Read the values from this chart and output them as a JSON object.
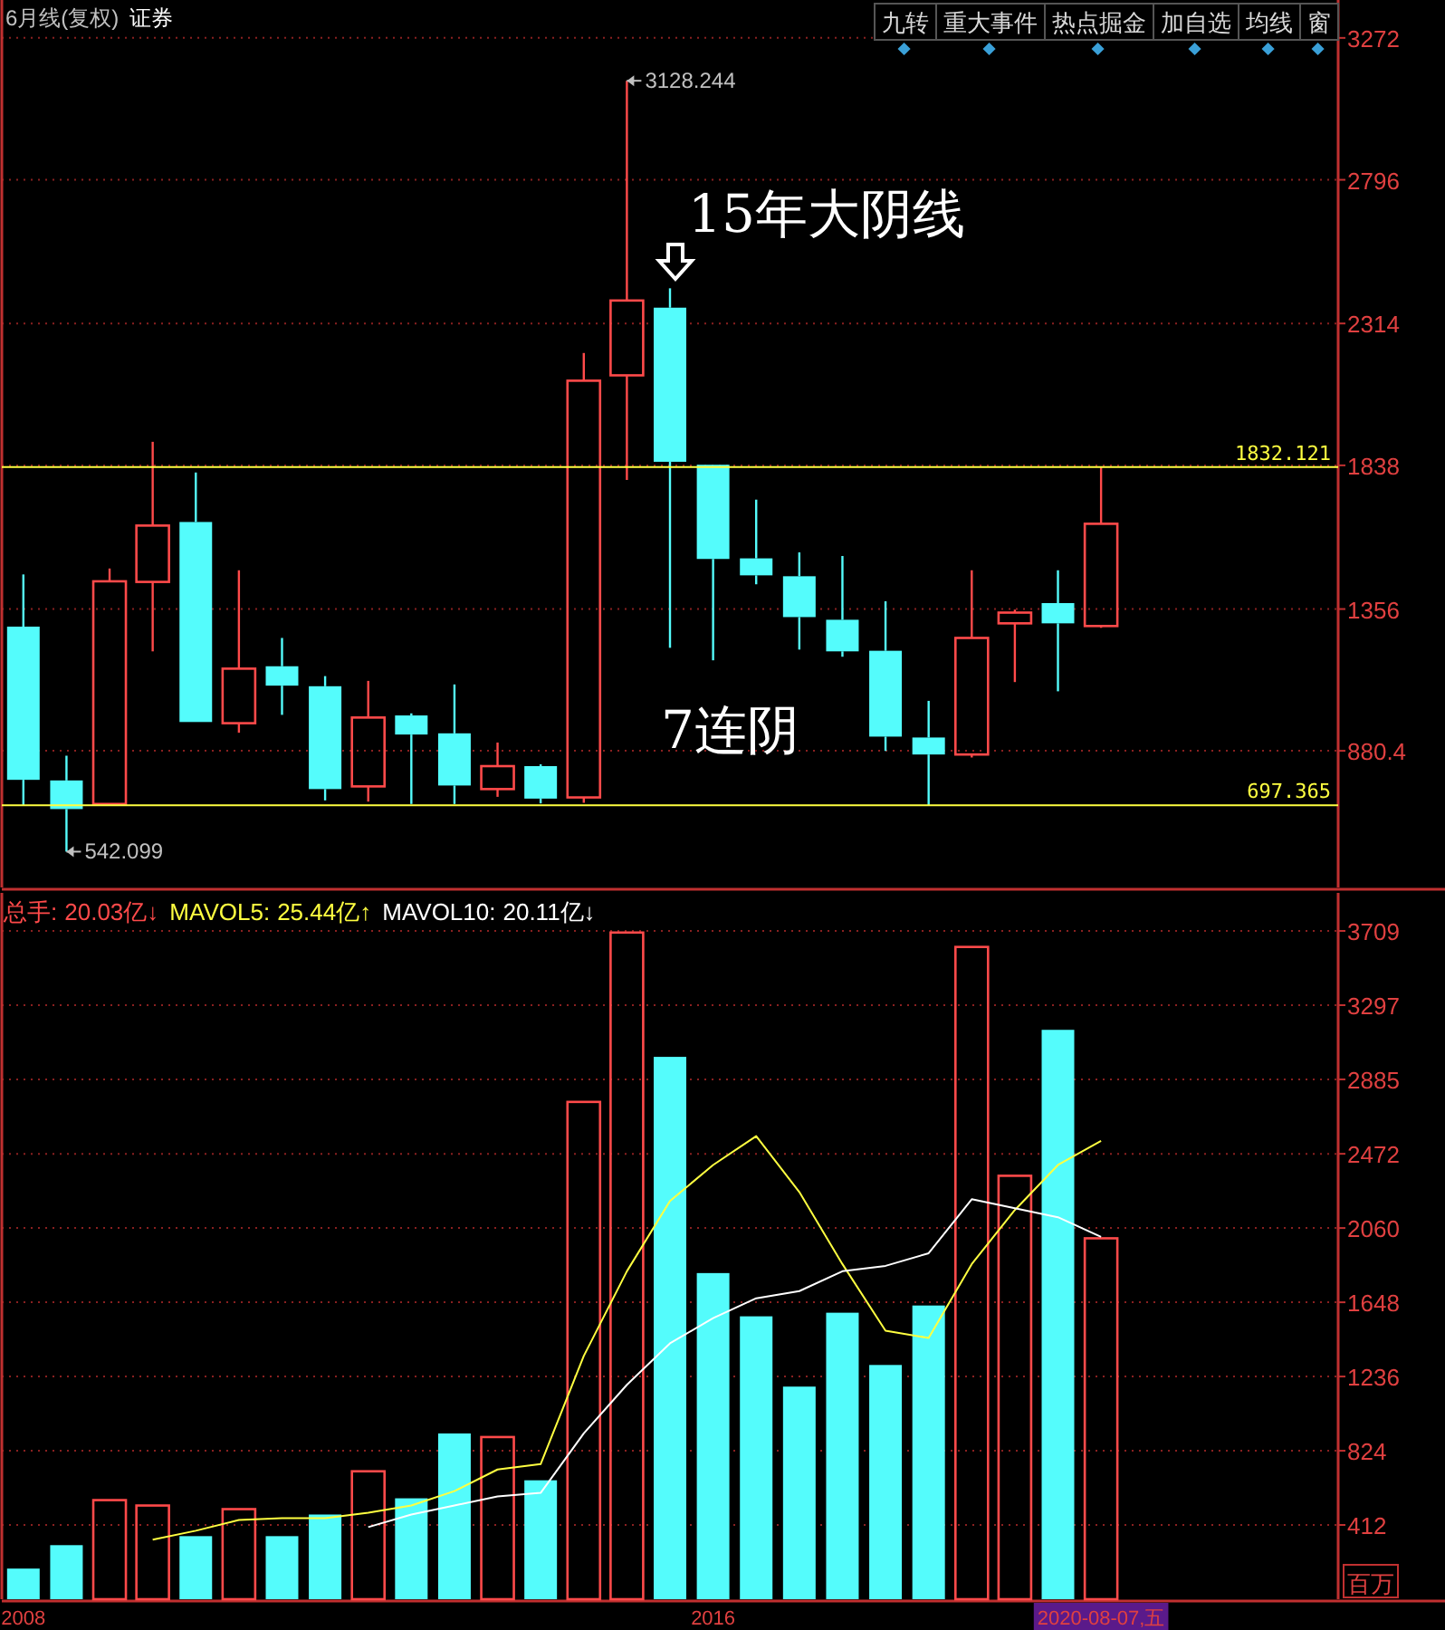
{
  "chart_data": [
    {
      "type": "candlestick",
      "title": "6月线(复权)",
      "subtitle": "证券",
      "categories": [
        null,
        null,
        null,
        null,
        null,
        null,
        null,
        null,
        null,
        null,
        null,
        null,
        null,
        null,
        null,
        null,
        null,
        null,
        null,
        null,
        null,
        null,
        null,
        null,
        null,
        null,
        null,
        null,
        null,
        null,
        null
      ],
      "ohlc": [
        [
          1297,
          1472,
          696,
          783
        ],
        [
          781,
          864,
          542.099,
          685
        ],
        [
          702,
          1492,
          697,
          1449
        ],
        [
          1447,
          1917,
          1214,
          1636
        ],
        [
          1648,
          1814,
          977,
          977
        ],
        [
          973,
          1486,
          941,
          1156
        ],
        [
          1164,
          1259,
          1001,
          1099
        ],
        [
          1097,
          1131,
          714,
          752
        ],
        [
          761,
          1115,
          710,
          992
        ],
        [
          999,
          1006,
          702,
          935
        ],
        [
          939,
          1103,
          702,
          764
        ],
        [
          752,
          908,
          726,
          829
        ],
        [
          829,
          835,
          704,
          720
        ],
        [
          724,
          2215,
          706,
          2122
        ],
        [
          2140,
          3128.244,
          1789,
          2391
        ],
        [
          2367,
          2432,
          1226,
          1850
        ],
        [
          1840,
          1840,
          1184,
          1524
        ],
        [
          1526,
          1723,
          1439,
          1469
        ],
        [
          1466,
          1546,
          1220,
          1329
        ],
        [
          1320,
          1534,
          1196,
          1214
        ],
        [
          1216,
          1382,
          880,
          928
        ],
        [
          925,
          1048,
          697.365,
          868
        ],
        [
          868,
          1486,
          858,
          1259
        ],
        [
          1308,
          1354,
          1111,
          1344
        ],
        [
          1376,
          1486,
          1080,
          1308
        ],
        [
          1299,
          1832.121,
          1293,
          1642
        ],
        null,
        null,
        null,
        null,
        null
      ],
      "colors": [
        "#54fcfc",
        "#54fcfc",
        "#ff4a4a",
        "#ff4a4a",
        "#54fcfc",
        "#ff4a4a",
        "#54fcfc",
        "#54fcfc",
        "#ff4a4a",
        "#54fcfc",
        "#54fcfc",
        "#ff4a4a",
        "#54fcfc",
        "#ff4a4a",
        "#ff4a4a",
        "#54fcfc",
        "#54fcfc",
        "#54fcfc",
        "#54fcfc",
        "#54fcfc",
        "#54fcfc",
        "#54fcfc",
        "#ff4a4a",
        "#ff4a4a",
        "#54fcfc",
        "#ff4a4a",
        null,
        null,
        null,
        null,
        null
      ],
      "ylim": [
        422,
        3387
      ],
      "yticks": [
        880.4,
        1356,
        1838,
        2314,
        2796,
        3272
      ],
      "grid": "y",
      "tick_labels": "y",
      "ref_lines": [
        {
          "axis": "y",
          "value": 1832.121,
          "label": "1832.121",
          "color": "#ffff40"
        },
        {
          "axis": "y",
          "value": 697.365,
          "label": "697.365",
          "color": "#ffff40"
        }
      ],
      "annotations": [
        "九转",
        "重大事件",
        "热点掘金",
        "加自选",
        "均线",
        "窗",
        "15年大阴线",
        "7连阴",
        "3128.244",
        "542.099"
      ]
    },
    {
      "type": "bar",
      "categories": [
        "2008",
        null,
        null,
        null,
        null,
        null,
        null,
        null,
        null,
        null,
        null,
        null,
        null,
        null,
        null,
        null,
        "2016",
        null,
        null,
        null,
        null,
        null,
        null,
        null,
        null,
        "2020-08-07,五",
        null,
        null,
        null,
        null,
        null
      ],
      "series": [
        {
          "name": "总手:",
          "type": "bar",
          "color": "#ff4a4a",
          "colors": [
            "#54fcfc",
            "#54fcfc",
            "#ff4a4a",
            "#ff4a4a",
            "#54fcfc",
            "#ff4a4a",
            "#54fcfc",
            "#54fcfc",
            "#ff4a4a",
            "#54fcfc",
            "#54fcfc",
            "#ff4a4a",
            "#54fcfc",
            "#ff4a4a",
            "#ff4a4a",
            "#54fcfc",
            "#54fcfc",
            "#54fcfc",
            "#54fcfc",
            "#54fcfc",
            "#54fcfc",
            "#54fcfc",
            "#ff4a4a",
            "#ff4a4a",
            "#54fcfc",
            "#ff4a4a",
            null,
            null,
            null,
            null,
            null
          ],
          "values": [
            170,
            300,
            550,
            520,
            350,
            500,
            350,
            470,
            710,
            560,
            920,
            900,
            660,
            2760,
            3700,
            3010,
            1810,
            1570,
            1180,
            1590,
            1300,
            1630,
            3620,
            2350,
            3160,
            2003,
            null,
            null,
            null,
            null,
            null
          ]
        },
        {
          "name": "MAVOL5:",
          "type": "line",
          "color": "#ffff40",
          "values": [
            null,
            null,
            null,
            330,
            380,
            440,
            450,
            450,
            480,
            520,
            600,
            720,
            750,
            1350,
            1820,
            2210,
            2410,
            2570,
            2260,
            1860,
            1490,
            1450,
            1860,
            2160,
            2410,
            2544,
            null,
            null,
            null,
            null,
            null
          ]
        },
        {
          "name": "MAVOL10:",
          "type": "line",
          "color": "#ffffff",
          "values": [
            null,
            null,
            null,
            null,
            null,
            null,
            null,
            null,
            400,
            470,
            520,
            570,
            590,
            920,
            1190,
            1420,
            1560,
            1670,
            1710,
            1820,
            1850,
            1920,
            2220,
            2170,
            2120,
            2011,
            null,
            null,
            null,
            null,
            null
          ]
        }
      ],
      "ylim": [
        0,
        3900
      ],
      "yticks": [
        412,
        824,
        1236,
        1648,
        2060,
        2472,
        2885,
        3297,
        3709
      ],
      "ylabel": "百万",
      "grid": "y",
      "annotations": [
        "20.03亿↓",
        "25.44亿↑",
        "20.11亿↓"
      ]
    }
  ]
}
